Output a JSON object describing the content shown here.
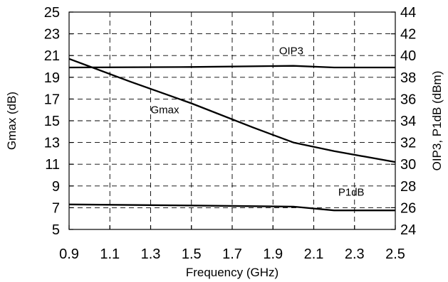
{
  "chart_data": {
    "type": "line",
    "xlabel": "Frequency (GHz)",
    "ylabel_left": "Gmax (dB)",
    "ylabel_right": "OIP3, P1dB (dBm)",
    "x_ticks": [
      "0.9",
      "1.1",
      "1.3",
      "1.5",
      "1.7",
      "1.9",
      "2.1",
      "2.3",
      "2.5"
    ],
    "y_left_ticks": [
      "5",
      "7",
      "9",
      "11",
      "13",
      "15",
      "17",
      "19",
      "21",
      "23",
      "25"
    ],
    "y_right_ticks": [
      "24",
      "26",
      "28",
      "30",
      "32",
      "34",
      "36",
      "38",
      "40",
      "42",
      "44"
    ],
    "xlim": [
      0.9,
      2.5
    ],
    "ylim_left": [
      5,
      25
    ],
    "ylim_right": [
      24,
      44
    ],
    "grid": true,
    "series": [
      {
        "name": "Gmax",
        "axis": "left",
        "x": [
          0.9,
          1.2,
          1.5,
          1.8,
          2.0,
          2.2,
          2.5
        ],
        "y": [
          20.7,
          18.6,
          16.6,
          14.4,
          13.0,
          12.2,
          11.2
        ]
      },
      {
        "name": "OIP3",
        "axis": "right",
        "x": [
          0.9,
          1.5,
          2.0,
          2.2,
          2.5
        ],
        "y": [
          38.9,
          38.95,
          39.05,
          38.9,
          38.9
        ]
      },
      {
        "name": "P1dB",
        "axis": "right",
        "x": [
          0.9,
          1.5,
          2.0,
          2.2,
          2.5
        ],
        "y": [
          26.3,
          26.2,
          26.1,
          25.75,
          25.75
        ]
      }
    ],
    "annotations": [
      {
        "text": "OIP3",
        "x": 1.93,
        "axis": "right",
        "y": 40.1
      },
      {
        "text": "Gmax",
        "x": 1.3,
        "axis": "left",
        "y": 15.7
      },
      {
        "text": "P1dB",
        "x": 2.22,
        "axis": "right",
        "y": 27.1
      }
    ]
  }
}
